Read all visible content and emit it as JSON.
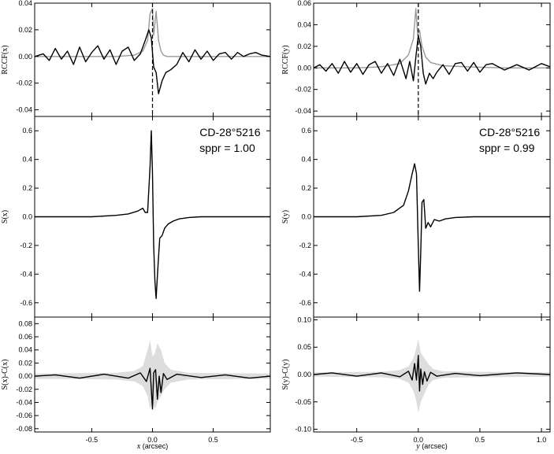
{
  "chart_data": [
    {
      "type": "line",
      "column": "x",
      "panels": [
        {
          "id": "rccf",
          "ylabel": "RCCF(x)",
          "ylim": [
            -0.045,
            0.04
          ],
          "yticks": [
            -0.04,
            -0.02,
            0.0,
            0.02,
            0.04
          ],
          "ytick_labels": [
            "-0.04",
            "-0.02",
            "0.00",
            "0.02",
            "0.04"
          ],
          "series": [
            {
              "color": "#999999",
              "x": [
                -0.97,
                -0.6,
                -0.3,
                -0.15,
                -0.08,
                -0.04,
                -0.02,
                0.0,
                0.01,
                0.03,
                0.05,
                0.07,
                0.09,
                0.12,
                0.2,
                0.4,
                0.97
              ],
              "y": [
                0.0,
                0.0,
                0.0,
                0.001,
                0.004,
                0.012,
                0.032,
                0.036,
                0.016,
                0.034,
                0.012,
                0.004,
                0.001,
                0.0,
                0.0,
                0.0,
                0.0
              ]
            },
            {
              "color": "#000000",
              "x": [
                -0.97,
                -0.9,
                -0.85,
                -0.8,
                -0.75,
                -0.7,
                -0.65,
                -0.6,
                -0.55,
                -0.5,
                -0.45,
                -0.4,
                -0.35,
                -0.3,
                -0.25,
                -0.2,
                -0.15,
                -0.1,
                -0.06,
                -0.03,
                -0.01,
                0.01,
                0.03,
                0.05,
                0.08,
                0.11,
                0.15,
                0.2,
                0.25,
                0.3,
                0.35,
                0.4,
                0.45,
                0.5,
                0.55,
                0.6,
                0.65,
                0.7,
                0.75,
                0.8,
                0.85,
                0.9,
                0.97
              ],
              "y": [
                0.0,
                0.002,
                -0.003,
                0.006,
                -0.002,
                0.004,
                -0.006,
                0.007,
                -0.004,
                0.003,
                0.008,
                -0.002,
                0.005,
                -0.006,
                0.004,
                0.007,
                -0.003,
                0.002,
                0.012,
                0.02,
                0.014,
                -0.008,
                -0.012,
                -0.028,
                -0.018,
                -0.012,
                -0.01,
                -0.006,
                0.003,
                -0.004,
                0.005,
                -0.002,
                0.004,
                -0.003,
                0.002,
                0.003,
                -0.002,
                0.003,
                0.0,
                0.002,
                0.003,
                0.001,
                0.0
              ]
            }
          ]
        },
        {
          "id": "s",
          "ylabel": "S(x)",
          "ylim": [
            -0.7,
            0.7
          ],
          "yticks": [
            -0.6,
            -0.4,
            -0.2,
            0.0,
            0.2,
            0.4,
            0.6
          ],
          "ytick_labels": [
            "-0.6",
            "-0.4",
            "-0.2",
            "0.0",
            "0.2",
            "0.4",
            "0.6"
          ],
          "annotation": [
            "CD-28°5216",
            "sppr = 1.00"
          ],
          "series": [
            {
              "color": "#000000",
              "x": [
                -0.97,
                -0.5,
                -0.3,
                -0.2,
                -0.12,
                -0.08,
                -0.06,
                -0.04,
                -0.02,
                -0.01,
                0.0,
                0.01,
                0.02,
                0.03,
                0.045,
                0.06,
                0.08,
                0.1,
                0.13,
                0.17,
                0.22,
                0.3,
                0.4,
                0.6,
                0.97
              ],
              "y": [
                0.0,
                0.0,
                0.01,
                0.02,
                0.04,
                0.06,
                0.03,
                0.03,
                0.35,
                0.6,
                0.3,
                -0.2,
                -0.45,
                -0.57,
                -0.35,
                -0.15,
                -0.13,
                -0.08,
                -0.05,
                -0.03,
                -0.015,
                -0.005,
                0.0,
                0.0,
                0.0
              ]
            }
          ]
        },
        {
          "id": "resid",
          "ylabel": "S(x)-C(x)",
          "ylim": [
            -0.085,
            0.09
          ],
          "yticks": [
            -0.08,
            -0.06,
            -0.04,
            -0.02,
            0.0,
            0.02,
            0.04,
            0.06,
            0.08
          ],
          "ytick_labels": [
            "-0.08",
            "-0.06",
            "-0.04",
            "-0.02",
            "0.00",
            "0.02",
            "0.04",
            "0.06",
            "0.08"
          ],
          "band": {
            "color": "#dddddd",
            "x": [
              -0.97,
              -0.3,
              -0.15,
              -0.08,
              -0.04,
              -0.02,
              0.0,
              0.02,
              0.04,
              0.07,
              0.1,
              0.15,
              0.3,
              0.97
            ],
            "upper": [
              0.004,
              0.005,
              0.008,
              0.015,
              0.04,
              0.055,
              0.03,
              0.035,
              0.05,
              0.04,
              0.02,
              0.01,
              0.005,
              0.004
            ],
            "lower": [
              -0.004,
              -0.005,
              -0.008,
              -0.015,
              -0.03,
              -0.05,
              -0.04,
              -0.05,
              -0.04,
              -0.03,
              -0.02,
              -0.01,
              -0.005,
              -0.004
            ]
          },
          "series": [
            {
              "color": "#000000",
              "x": [
                -0.97,
                -0.8,
                -0.6,
                -0.4,
                -0.2,
                -0.1,
                -0.05,
                -0.02,
                0.0,
                0.01,
                0.025,
                0.04,
                0.055,
                0.07,
                0.09,
                0.12,
                0.2,
                0.4,
                0.6,
                0.8,
                0.97
              ],
              "y": [
                0.0,
                0.002,
                -0.003,
                0.003,
                -0.003,
                0.005,
                -0.008,
                0.012,
                -0.05,
                0.005,
                0.01,
                -0.035,
                0.0,
                -0.025,
                0.004,
                -0.005,
                0.003,
                -0.002,
                0.002,
                -0.003,
                0.0
              ]
            }
          ]
        }
      ],
      "xlim": [
        -0.97,
        0.97
      ],
      "xticks": [
        -0.5,
        0.0,
        0.5
      ],
      "xtick_labels": [
        "-0.5",
        "0.0",
        "0.5"
      ],
      "xlabel_var": "x",
      "xlabel_unit": " (arcsec)"
    },
    {
      "type": "line",
      "column": "y",
      "panels": [
        {
          "id": "rccf",
          "ylabel": "RCCF(y)",
          "ylim": [
            -0.045,
            0.06
          ],
          "yticks": [
            -0.04,
            -0.02,
            0.0,
            0.02,
            0.04,
            0.06
          ],
          "ytick_labels": [
            "-0.04",
            "-0.02",
            "0.00",
            "0.02",
            "0.04",
            "0.06"
          ],
          "series": [
            {
              "color": "#999999",
              "x": [
                -0.85,
                -0.5,
                -0.3,
                -0.15,
                -0.08,
                -0.04,
                -0.02,
                -0.005,
                0.01,
                0.03,
                0.06,
                0.1,
                0.2,
                0.4,
                0.7,
                1.07
              ],
              "y": [
                0.0,
                0.0,
                0.001,
                0.004,
                0.012,
                0.027,
                0.055,
                0.03,
                0.035,
                0.02,
                0.01,
                0.005,
                0.002,
                0.001,
                0.0,
                0.0
              ]
            },
            {
              "color": "#000000",
              "x": [
                -0.85,
                -0.8,
                -0.75,
                -0.7,
                -0.65,
                -0.6,
                -0.55,
                -0.5,
                -0.45,
                -0.4,
                -0.35,
                -0.3,
                -0.25,
                -0.2,
                -0.15,
                -0.1,
                -0.07,
                -0.04,
                -0.02,
                0.0,
                0.02,
                0.04,
                0.06,
                0.09,
                0.12,
                0.15,
                0.2,
                0.25,
                0.3,
                0.35,
                0.4,
                0.45,
                0.5,
                0.55,
                0.6,
                0.7,
                0.8,
                0.9,
                1.0,
                1.07
              ],
              "y": [
                0.0,
                0.003,
                -0.003,
                0.004,
                -0.005,
                0.006,
                -0.004,
                0.004,
                -0.006,
                0.003,
                0.006,
                -0.005,
                0.004,
                -0.007,
                0.008,
                -0.01,
                0.006,
                -0.012,
                0.01,
                0.03,
                0.02,
                -0.005,
                -0.015,
                -0.005,
                -0.01,
                -0.004,
                0.003,
                -0.006,
                0.004,
                0.005,
                -0.003,
                0.005,
                -0.004,
                0.003,
                0.004,
                -0.002,
                0.003,
                -0.002,
                0.004,
                0.001
              ]
            }
          ]
        },
        {
          "id": "s",
          "ylabel": "S(y)",
          "ylim": [
            -0.7,
            0.7
          ],
          "yticks": [
            -0.6,
            -0.4,
            -0.2,
            0.0,
            0.2,
            0.4,
            0.6
          ],
          "ytick_labels": [
            "-0.6",
            "-0.4",
            "-0.2",
            "0.0",
            "0.2",
            "0.4",
            "0.6"
          ],
          "annotation": [
            "CD-28°5216",
            "sppr = 0.99"
          ],
          "series": [
            {
              "color": "#000000",
              "x": [
                -0.85,
                -0.5,
                -0.3,
                -0.2,
                -0.12,
                -0.08,
                -0.05,
                -0.03,
                -0.015,
                0.0,
                0.01,
                0.02,
                0.03,
                0.045,
                0.06,
                0.08,
                0.1,
                0.13,
                0.17,
                0.22,
                0.3,
                0.45,
                0.7,
                1.07
              ],
              "y": [
                0.0,
                0.0,
                0.01,
                0.03,
                0.08,
                0.18,
                0.3,
                0.37,
                0.3,
                -0.2,
                -0.52,
                -0.25,
                0.1,
                0.12,
                -0.08,
                -0.04,
                -0.07,
                -0.02,
                -0.03,
                -0.015,
                -0.005,
                0.0,
                0.0,
                0.0
              ]
            }
          ]
        },
        {
          "id": "resid",
          "ylabel": "S(y)-C(y)",
          "ylim": [
            -0.105,
            0.105
          ],
          "yticks": [
            -0.1,
            -0.05,
            0.0,
            0.05,
            0.1
          ],
          "ytick_labels": [
            "-0.10",
            "-0.05",
            "0.00",
            "0.05",
            "0.10"
          ],
          "band": {
            "color": "#dddddd",
            "x": [
              -0.85,
              -0.3,
              -0.15,
              -0.08,
              -0.04,
              -0.02,
              0.0,
              0.02,
              0.05,
              0.08,
              0.12,
              0.2,
              0.4,
              1.07
            ],
            "upper": [
              0.004,
              0.005,
              0.008,
              0.015,
              0.03,
              0.045,
              0.065,
              0.04,
              0.03,
              0.02,
              0.01,
              0.006,
              0.005,
              0.004
            ],
            "lower": [
              -0.004,
              -0.005,
              -0.008,
              -0.015,
              -0.03,
              -0.045,
              -0.07,
              -0.05,
              -0.035,
              -0.02,
              -0.01,
              -0.006,
              -0.005,
              -0.004
            ]
          },
          "series": [
            {
              "color": "#000000",
              "x": [
                -0.85,
                -0.7,
                -0.5,
                -0.3,
                -0.15,
                -0.08,
                -0.05,
                -0.03,
                -0.015,
                0.0,
                0.01,
                0.02,
                0.035,
                0.05,
                0.07,
                0.1,
                0.15,
                0.3,
                0.5,
                0.8,
                1.07
              ],
              "y": [
                0.0,
                0.003,
                -0.003,
                0.003,
                -0.004,
                0.006,
                -0.01,
                0.02,
                -0.01,
                0.035,
                -0.03,
                0.01,
                -0.018,
                0.005,
                -0.012,
                0.004,
                -0.003,
                0.002,
                -0.002,
                0.003,
                0.0
              ]
            }
          ]
        }
      ],
      "xlim": [
        -0.85,
        1.07
      ],
      "xticks": [
        -0.5,
        0.0,
        0.5,
        1.0
      ],
      "xtick_labels": [
        "-0.5",
        "0.0",
        "0.5",
        "1.0"
      ],
      "xlabel_var": "y",
      "xlabel_unit": " (arcsec)"
    }
  ]
}
